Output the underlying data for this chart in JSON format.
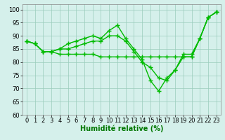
{
  "background_color": "#d5f0eb",
  "grid_color": "#99ccbb",
  "line_color": "#00bb00",
  "marker": "+",
  "marker_size": 4,
  "line_width": 1.0,
  "xlabel": "Humidité relative (%)",
  "xlabel_fontsize": 7,
  "tick_fontsize": 6,
  "xlim": [
    -0.5,
    23.5
  ],
  "ylim": [
    60,
    102
  ],
  "yticks": [
    60,
    65,
    70,
    75,
    80,
    85,
    90,
    95,
    100
  ],
  "xticks": [
    0,
    1,
    2,
    3,
    4,
    5,
    6,
    7,
    8,
    9,
    10,
    11,
    12,
    13,
    14,
    15,
    16,
    17,
    18,
    19,
    20,
    21,
    22,
    23
  ],
  "line1": [
    88,
    87,
    84,
    84,
    85,
    87,
    88,
    89,
    90,
    89,
    92,
    94,
    89,
    85,
    81,
    73,
    69,
    74,
    77,
    83,
    83,
    89,
    97,
    99
  ],
  "line2": [
    88,
    87,
    84,
    84,
    85,
    85,
    86,
    87,
    88,
    88,
    90,
    90,
    88,
    84,
    80,
    78,
    74,
    73,
    77,
    82,
    82,
    89,
    97,
    99
  ],
  "line3": [
    88,
    87,
    84,
    84,
    83,
    83,
    83,
    83,
    83,
    82,
    82,
    82,
    82,
    82,
    82,
    82,
    82,
    82,
    82,
    82,
    82,
    89,
    97,
    99
  ]
}
